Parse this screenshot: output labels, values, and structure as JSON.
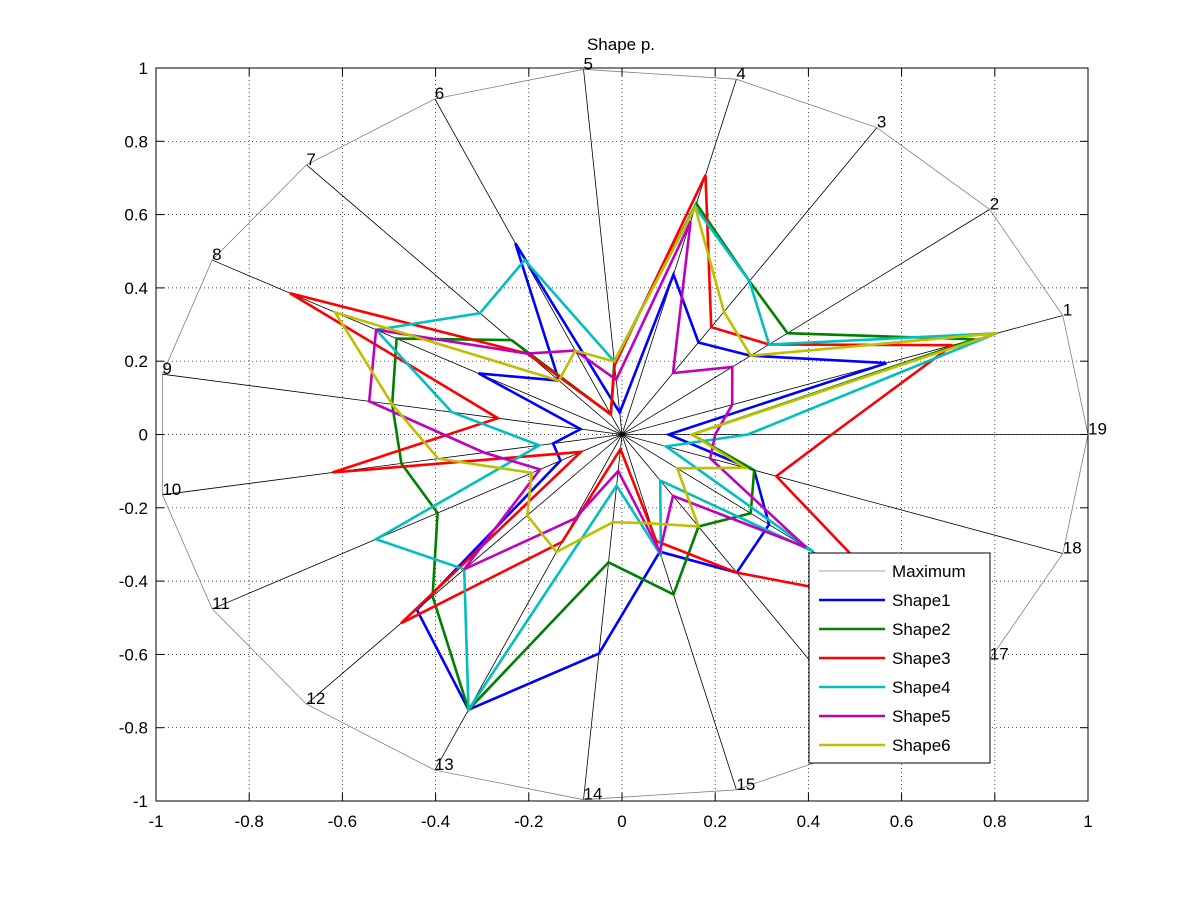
{
  "chart_data": {
    "type": "radar",
    "title": "Shape p.",
    "xlim": [
      -1,
      1
    ],
    "ylim": [
      -1,
      1
    ],
    "grid": true,
    "legend_location": "bottom-right",
    "x_ticks": [
      "-1",
      "-0.8",
      "-0.6",
      "-0.4",
      "-0.2",
      "0",
      "0.2",
      "0.4",
      "0.6",
      "0.8",
      "1"
    ],
    "y_ticks": [
      "1",
      "0.8",
      "0.6",
      "0.4",
      "0.2",
      "0",
      "-0.2",
      "-0.4",
      "-0.6",
      "-0.8",
      "-1"
    ],
    "spoke_labels": [
      "1",
      "2",
      "3",
      "4",
      "5",
      "6",
      "7",
      "8",
      "9",
      "10",
      "11",
      "12",
      "13",
      "14",
      "15",
      "16",
      "17",
      "18",
      "19"
    ],
    "series": [
      {
        "name": "Maximum",
        "color": "#808080",
        "values": [
          1,
          1,
          1,
          1,
          1,
          1,
          1,
          1,
          1,
          1,
          1,
          1,
          1,
          1,
          1,
          1,
          1,
          1,
          1
        ]
      },
      {
        "name": "Shape1",
        "color": "#0000ff",
        "values": [
          0.6,
          0.35,
          0.3,
          0.45,
          0.06,
          0.57,
          0.2,
          0.35,
          0.09,
          0.15,
          0.15,
          0.65,
          0.82,
          0.6,
          0.33,
          0.45,
          0.4,
          0.3,
          0.1
        ]
      },
      {
        "name": "Shape2",
        "color": "#008000",
        "values": [
          0.8,
          0.45,
          0.5,
          0.65,
          0.2,
          0.06,
          0.35,
          0.55,
          0.5,
          0.48,
          0.45,
          0.6,
          0.82,
          0.35,
          0.45,
          0.3,
          0.35,
          0.3,
          0.15
        ]
      },
      {
        "name": "Shape3",
        "color": "#ff0000",
        "values": [
          0.75,
          0.4,
          0.35,
          0.73,
          0.19,
          0.06,
          0.3,
          0.81,
          0.27,
          0.63,
          0.1,
          0.7,
          0.32,
          0.04,
          0.3,
          0.45,
          0.75,
          0.35,
          0.45
        ]
      },
      {
        "name": "Shape4",
        "color": "#00bfbf",
        "values": [
          0.85,
          0.4,
          0.5,
          0.64,
          0.2,
          0.52,
          0.45,
          0.6,
          0.37,
          0.18,
          0.6,
          0.5,
          0.82,
          0.14,
          0.34,
          0.15,
          0.52,
          0.1,
          0.27
        ]
      },
      {
        "name": "Shape5",
        "color": "#bf00bf",
        "values": [
          0.25,
          0.3,
          0.2,
          0.6,
          0.15,
          0.25,
          0.3,
          0.6,
          0.55,
          0.3,
          0.2,
          0.5,
          0.25,
          0.1,
          0.33,
          0.2,
          0.5,
          0.2,
          0.2
        ]
      },
      {
        "name": "Shape6",
        "color": "#bfbf00",
        "values": [
          0.85,
          0.35,
          0.4,
          0.64,
          0.2,
          0.25,
          0.2,
          0.7,
          0.5,
          0.4,
          0.22,
          0.3,
          0.35,
          0.24,
          0.25,
          0.3,
          0.15,
          0.28,
          0.15
        ]
      }
    ]
  }
}
